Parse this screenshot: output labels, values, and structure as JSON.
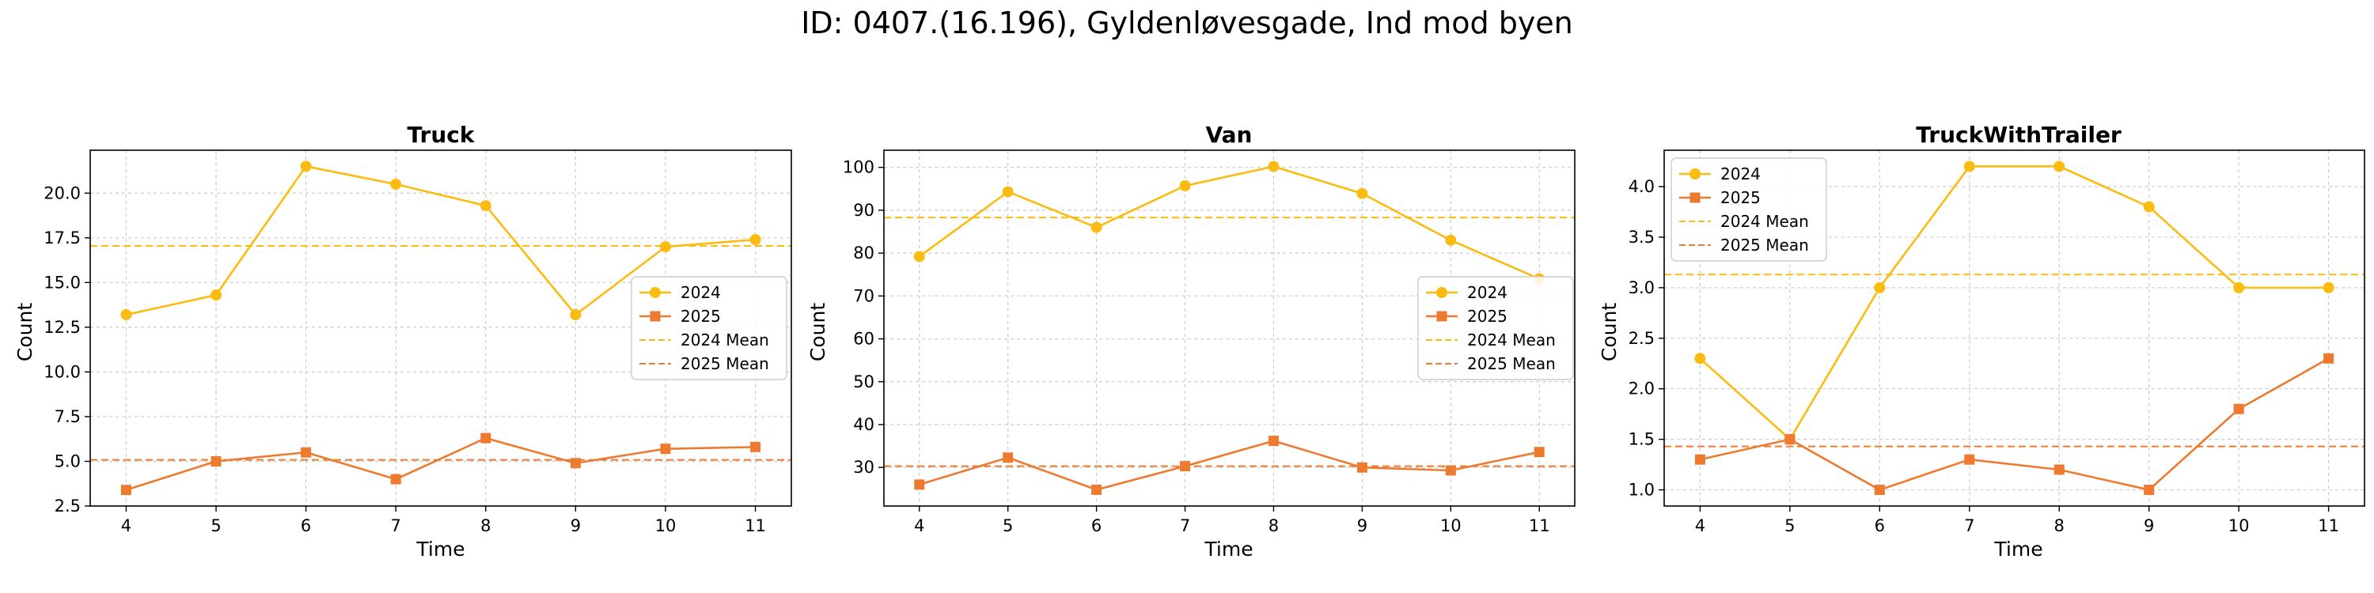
{
  "figure": {
    "suptitle": "ID: 0407.(16.196), Gyldenløvesgade, Ind mod byen"
  },
  "legend_labels": [
    "2024",
    "2025",
    "2024 Mean",
    "2025 Mean"
  ],
  "colors": {
    "y2024": "#FBBB10",
    "y2025": "#EE7A30"
  },
  "chart_data": [
    {
      "type": "line",
      "title": "Truck",
      "xlabel": "Time",
      "ylabel": "Count",
      "x": [
        4,
        5,
        6,
        7,
        8,
        9,
        10,
        11
      ],
      "series": [
        {
          "name": "2024",
          "values": [
            13.2,
            14.3,
            21.5,
            20.5,
            19.3,
            13.2,
            17.0,
            17.4
          ]
        },
        {
          "name": "2025",
          "values": [
            3.4,
            5.0,
            5.5,
            4.0,
            6.3,
            4.9,
            5.7,
            5.8
          ]
        }
      ],
      "means": {
        "2024": 17.05,
        "2025": 5.08
      },
      "xlim": [
        3.6,
        11.4
      ],
      "ylim": [
        2.5,
        22.4
      ],
      "yticks": [
        "2.5",
        "5.0",
        "7.5",
        "10.0",
        "12.5",
        "15.0",
        "17.5",
        "20.0"
      ],
      "xticks": [
        "4",
        "5",
        "6",
        "7",
        "8",
        "9",
        "10",
        "11"
      ],
      "grid": true,
      "legend": "center-right"
    },
    {
      "type": "line",
      "title": "Van",
      "xlabel": "Time",
      "ylabel": "Count",
      "x": [
        4,
        5,
        6,
        7,
        8,
        9,
        10,
        11
      ],
      "series": [
        {
          "name": "2024",
          "values": [
            79.2,
            94.3,
            86.0,
            95.7,
            100.2,
            93.9,
            83.0,
            74.0
          ]
        },
        {
          "name": "2025",
          "values": [
            26.0,
            32.3,
            24.8,
            30.3,
            36.2,
            30.0,
            29.3,
            33.6
          ]
        }
      ],
      "means": {
        "2024": 88.3,
        "2025": 30.3
      },
      "xlim": [
        3.6,
        11.4
      ],
      "ylim": [
        21.0,
        104.0
      ],
      "yticks": [
        "30",
        "40",
        "50",
        "60",
        "70",
        "80",
        "90",
        "100"
      ],
      "xticks": [
        "4",
        "5",
        "6",
        "7",
        "8",
        "9",
        "10",
        "11"
      ],
      "grid": true,
      "legend": "center-right"
    },
    {
      "type": "line",
      "title": "TruckWithTrailer",
      "xlabel": "Time",
      "ylabel": "Count",
      "x": [
        4,
        5,
        6,
        7,
        8,
        9,
        10,
        11
      ],
      "series": [
        {
          "name": "2024",
          "values": [
            2.3,
            1.5,
            3.0,
            4.2,
            4.2,
            3.8,
            3.0,
            3.0
          ]
        },
        {
          "name": "2025",
          "values": [
            1.3,
            1.5,
            1.0,
            1.3,
            1.2,
            1.0,
            1.8,
            2.3
          ]
        }
      ],
      "means": {
        "2024": 3.13,
        "2025": 1.43
      },
      "xlim": [
        3.6,
        11.4
      ],
      "ylim": [
        0.84,
        4.36
      ],
      "yticks": [
        "1.0",
        "1.5",
        "2.0",
        "2.5",
        "3.0",
        "3.5",
        "4.0"
      ],
      "xticks": [
        "4",
        "5",
        "6",
        "7",
        "8",
        "9",
        "10",
        "11"
      ],
      "grid": true,
      "legend": "upper-left"
    }
  ]
}
